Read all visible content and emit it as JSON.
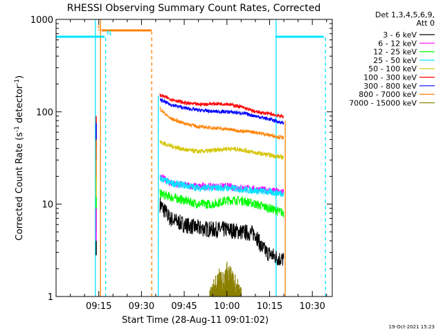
{
  "chart_data": {
    "type": "line",
    "title": "RHESSI Observing Summary Count Rates, Corrected",
    "xlabel": "Start Time (28-Aug-11 09:01:02)",
    "ylabel": "Corrected Count Rate (s⁻¹ detector⁻¹)",
    "ylabel_parts": {
      "pre": "Corrected Count Rate (s",
      "exp1": "-1",
      "mid": " detector",
      "exp2": "-1",
      "post": ")"
    },
    "x_ticks": [
      {
        "t": 15,
        "label": "09:15"
      },
      {
        "t": 30,
        "label": "09:30"
      },
      {
        "t": 45,
        "label": "09:45"
      },
      {
        "t": 60,
        "label": "10:00"
      },
      {
        "t": 75,
        "label": "10:15"
      },
      {
        "t": 90,
        "label": "10:30"
      }
    ],
    "y_ticks": [
      {
        "v": 1,
        "label": "1"
      },
      {
        "v": 10,
        "label": "10"
      },
      {
        "v": 100,
        "label": "100"
      },
      {
        "v": 1000,
        "label": "1000"
      }
    ],
    "xlim_minutes_after_09_01_02": [
      0,
      97
    ],
    "ylim": [
      1,
      1000
    ],
    "yscale": "log",
    "legend_header": [
      "Det 1,3,4,5,6,9,",
      "Att 0"
    ],
    "legend_position": "right",
    "timestamp": "19-Oct-2021 15:23",
    "flags": [
      {
        "label": "S",
        "color": "#ff8000"
      },
      {
        "label": "N",
        "color": "#00e5ff"
      }
    ],
    "series": [
      {
        "name": "3 - 6 keV",
        "color": "#000000",
        "x": [
          36.5,
          40,
          45,
          50,
          55,
          60,
          65,
          70,
          72,
          74,
          78,
          80
        ],
        "y": [
          10,
          7,
          6,
          5.5,
          5.3,
          5.3,
          5,
          4.8,
          3.5,
          3,
          2.6,
          2.5
        ]
      },
      {
        "name": "6 - 12 keV",
        "color": "#ff00ff",
        "x": [
          36.5,
          40,
          45,
          50,
          55,
          60,
          65,
          70,
          75,
          80
        ],
        "y": [
          20,
          17,
          16,
          15.5,
          15.5,
          15.5,
          15,
          14.5,
          14,
          13.5
        ]
      },
      {
        "name": "12 - 25 keV",
        "color": "#00ff00",
        "x": [
          36.5,
          40,
          45,
          50,
          55,
          60,
          65,
          70,
          75,
          80
        ],
        "y": [
          13,
          12,
          11,
          10,
          10,
          11,
          11,
          10,
          9,
          8
        ]
      },
      {
        "name": "25 - 50 keV",
        "color": "#00e5ff",
        "x": [
          36.5,
          40,
          45,
          50,
          55,
          60,
          65,
          70,
          75,
          80
        ],
        "y": [
          19,
          17,
          16,
          15,
          15,
          15,
          14.5,
          14,
          13.5,
          13
        ]
      },
      {
        "name": "50 - 100 keV",
        "color": "#d4c400",
        "x": [
          36.5,
          40,
          45,
          50,
          55,
          60,
          65,
          70,
          75,
          80
        ],
        "y": [
          47,
          43,
          39,
          37,
          38,
          40,
          39,
          36,
          34,
          32
        ]
      },
      {
        "name": "100 - 300 keV",
        "color": "#ff0000",
        "x": [
          36.5,
          40,
          45,
          50,
          55,
          60,
          65,
          70,
          75,
          80
        ],
        "y": [
          152,
          138,
          125,
          120,
          122,
          122,
          113,
          100,
          95,
          88
        ]
      },
      {
        "name": "300 - 800 keV",
        "color": "#0000ff",
        "x": [
          36.5,
          40,
          45,
          50,
          55,
          60,
          65,
          70,
          75,
          80
        ],
        "y": [
          135,
          120,
          110,
          104,
          101,
          100,
          97,
          90,
          83,
          75
        ]
      },
      {
        "name": "800 - 7000 keV",
        "color": "#ff8000",
        "x": [
          36.5,
          40,
          45,
          50,
          55,
          60,
          65,
          70,
          75,
          80
        ],
        "y": [
          108,
          85,
          75,
          69,
          67,
          65,
          62,
          60,
          56,
          52
        ]
      },
      {
        "name": "7000 - 15000 keV",
        "color": "#8b8000",
        "x": [],
        "y": []
      }
    ],
    "pre_spikes_x": 14.1,
    "pre_spikes": [
      {
        "color": "#ff0000",
        "y": [
          40,
          90
        ]
      },
      {
        "color": "#0000ff",
        "y": [
          30,
          75
        ]
      },
      {
        "color": "#ff8000",
        "y": [
          18,
          50
        ]
      },
      {
        "color": "#d4c400",
        "y": [
          8,
          20
        ]
      },
      {
        "color": "#00ff00",
        "y": [
          5,
          12
        ]
      },
      {
        "color": "#ff00ff",
        "y": [
          4,
          9
        ]
      },
      {
        "color": "#000000",
        "y": [
          2.8,
          4
        ]
      }
    ],
    "high_energy_burst": {
      "color": "#8b8000",
      "x_range": [
        54,
        65
      ],
      "peak": 2.5
    },
    "saa_bars": [
      {
        "color": "#00e5ff",
        "x": [
          0,
          17
        ],
        "y": 650
      },
      {
        "color": "#ff8000",
        "x": [
          16,
          33.5
        ],
        "y": 760
      },
      {
        "color": "#00e5ff",
        "x": [
          77,
          94
        ],
        "y": 650
      }
    ],
    "vlines": [
      {
        "x": 13.8,
        "color": "#00e5ff",
        "style": "solid",
        "ymax": 1000
      },
      {
        "x": 15.6,
        "color": "#ff8000",
        "style": "solid",
        "ymax": 1000
      },
      {
        "x": 17.4,
        "color": "#00e5ff",
        "style": "dashed",
        "ymax": 650
      },
      {
        "x": 33.6,
        "color": "#ff8000",
        "style": "dashed",
        "ymax": 760
      },
      {
        "x": 35.9,
        "color": "#00e5ff",
        "style": "solid",
        "ymax": 150
      },
      {
        "x": 77.3,
        "color": "#00e5ff",
        "style": "solid",
        "ymax": 1000
      },
      {
        "x": 80.5,
        "color": "#ff8000",
        "style": "solid",
        "ymax": 80
      },
      {
        "x": 94.6,
        "color": "#00e5ff",
        "style": "dashed",
        "ymax": 650
      }
    ]
  }
}
